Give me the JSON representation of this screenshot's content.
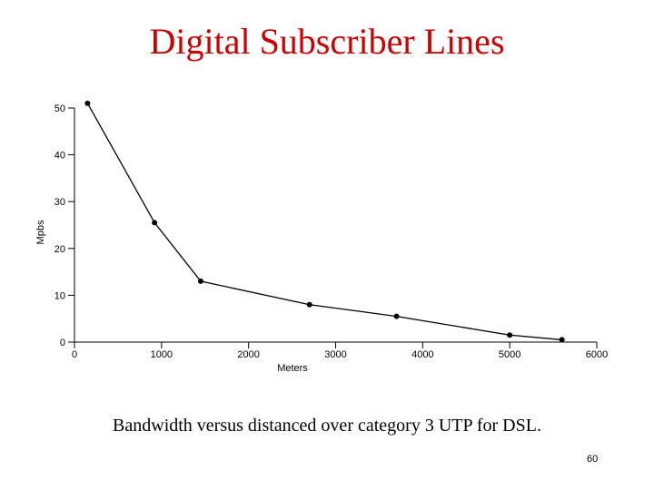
{
  "slide": {
    "title": "Digital Subscriber Lines",
    "caption": "Bandwidth versus distanced over category 3 UTP for DSL.",
    "page_number": "60"
  },
  "chart_data": {
    "type": "line",
    "xlabel": "Meters",
    "ylabel": "Mpbs",
    "xlim": [
      0,
      6000
    ],
    "ylim": [
      0,
      50
    ],
    "xticks": [
      0,
      1000,
      2000,
      3000,
      4000,
      5000,
      6000
    ],
    "yticks": [
      0,
      10,
      20,
      30,
      40,
      50
    ],
    "grid": false,
    "series": [
      {
        "x": [
          150,
          920,
          1450,
          2700,
          3700,
          5000,
          5600
        ],
        "y": [
          51,
          25.5,
          13,
          8,
          5.5,
          1.5,
          0.5
        ]
      }
    ]
  }
}
